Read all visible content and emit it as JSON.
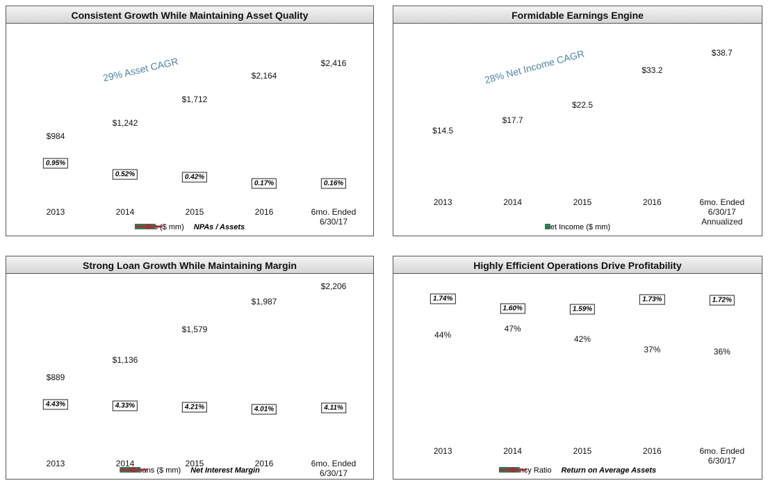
{
  "chart_data": [
    {
      "type": "bar_line",
      "title": "Consistent Growth While Maintaining Asset Quality",
      "annotation": "29% Asset CAGR",
      "categories": [
        "2013",
        "2014",
        "2015",
        "2016",
        "6mo. Ended\n6/30/17"
      ],
      "series": [
        {
          "name": "Assets ($ mm)",
          "type": "bar",
          "color": "#2e7b52",
          "values": [
            984,
            1242,
            1712,
            2164,
            2416
          ],
          "value_labels": [
            "$984",
            "$1,242",
            "$1,712",
            "$2,164",
            "$2,416"
          ]
        },
        {
          "name": "NPAs / Assets",
          "type": "line",
          "axis": "y2",
          "color": "#a3303c",
          "values": [
            0.95,
            0.52,
            0.42,
            0.17,
            0.16
          ],
          "value_labels": [
            "0.95%",
            "0.52%",
            "0.42%",
            "0.17%",
            "0.16%"
          ]
        }
      ],
      "ylim": [
        0,
        3200
      ],
      "y2lim": [
        0,
        6.4
      ]
    },
    {
      "type": "bar",
      "title": "Formidable Earnings Engine",
      "annotation": "28% Net Income CAGR",
      "categories": [
        "2013",
        "2014",
        "2015",
        "2016",
        "6mo. Ended\n6/30/17\nAnnualized"
      ],
      "series": [
        {
          "name": "Net Income  ($ mm)",
          "type": "bar",
          "color": "#2e7b52",
          "values": [
            14.5,
            17.7,
            22.5,
            33.2,
            38.7
          ],
          "value_labels": [
            "$14.5",
            "$17.7",
            "$22.5",
            "$33.2",
            "$38.7"
          ]
        }
      ],
      "ylim": [
        0,
        48
      ]
    },
    {
      "type": "bar_line",
      "title": "Strong Loan Growth While Maintaining Margin",
      "categories": [
        "2013",
        "2014",
        "2015",
        "2016",
        "6mo. Ended\n6/30/17"
      ],
      "series": [
        {
          "name": "Net Loans ($ mm)",
          "type": "bar",
          "color": "#2e7b52",
          "values": [
            889,
            1136,
            1579,
            1987,
            2206
          ],
          "value_labels": [
            "$889",
            "$1,136",
            "$1,579",
            "$1,987",
            "$2,206"
          ]
        },
        {
          "name": "Net Interest Margin",
          "type": "line",
          "axis": "y2",
          "color": "#a3303c",
          "values": [
            4.43,
            4.33,
            4.21,
            4.01,
            4.11
          ],
          "value_labels": [
            "4.43%",
            "4.33%",
            "4.21%",
            "4.01%",
            "4.11%"
          ]
        }
      ],
      "ylim": [
        0,
        2400
      ],
      "y2lim": [
        -1.5,
        15
      ]
    },
    {
      "type": "bar_line",
      "title": "Highly Efficient Operations Drive Profitability",
      "categories": [
        "2013",
        "2014",
        "2015",
        "2016",
        "6mo. Ended\n6/30/17"
      ],
      "series": [
        {
          "name": "Efficiency Ratio",
          "type": "bar",
          "color": "#2e7b52",
          "values": [
            44,
            47,
            42,
            37,
            36
          ],
          "value_labels": [
            "44%",
            "47%",
            "42%",
            "37%",
            "36%"
          ]
        },
        {
          "name": "Return on Average Assets",
          "type": "line",
          "axis": "y2",
          "color": "#a3303c",
          "values": [
            1.74,
            1.6,
            1.59,
            1.73,
            1.72
          ],
          "value_labels": [
            "1.74%",
            "1.60%",
            "1.59%",
            "1.73%",
            "1.72%"
          ]
        }
      ],
      "ylim": [
        0,
        74
      ],
      "y2lim": [
        -0.1,
        2.1
      ]
    }
  ]
}
